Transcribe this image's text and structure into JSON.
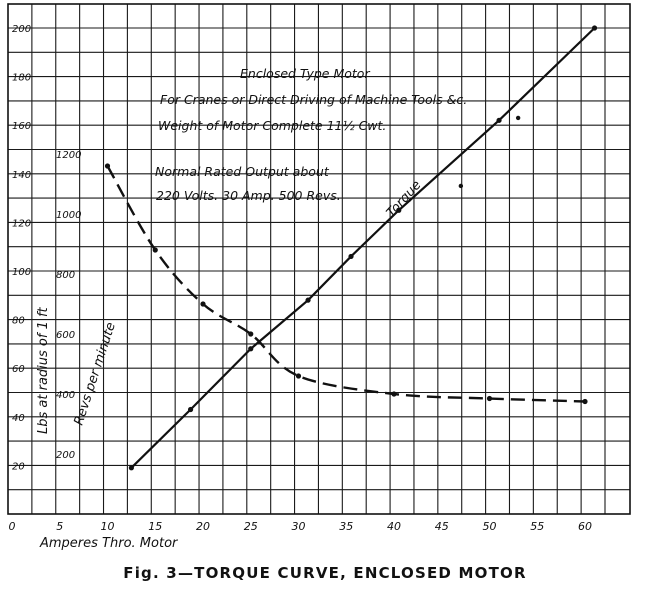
{
  "chart_data": {
    "type": "line",
    "caption": "Fig. 3—TORQUE CURVE, ENCLOSED MOTOR",
    "xlabel": "Amperes Thro. Motor",
    "ylabel_torque": "Lbs at radius of 1 ft",
    "ylabel_revs": "Revs per minute",
    "notes": [
      "Enclosed Type Motor",
      "For Cranes or Direct Driving of Machine Tools &c.",
      "Weight of Motor Complete 11½ Cwt.",
      "Normal Rated Output about",
      "220 Volts. 30 Amp. 500 Revs."
    ],
    "x_ticks": [
      "0",
      "5",
      "10",
      "15",
      "20",
      "25",
      "30",
      "35",
      "40",
      "45",
      "50",
      "55",
      "60"
    ],
    "x_tick_values": [
      0,
      5,
      10,
      15,
      20,
      25,
      30,
      35,
      40,
      45,
      50,
      55,
      60
    ],
    "torque_ticks": [
      "20",
      "40",
      "60",
      "80",
      "100",
      "120",
      "140",
      "160",
      "180",
      "200"
    ],
    "torque_tick_values": [
      20,
      40,
      60,
      80,
      100,
      120,
      140,
      160,
      180,
      200
    ],
    "revs_ticks": [
      "200",
      "400",
      "600",
      "800",
      "1000",
      "1200"
    ],
    "revs_tick_values": [
      200,
      400,
      600,
      800,
      1000,
      1200
    ],
    "xlim": [
      0,
      65
    ],
    "ylim_torque": [
      0,
      210
    ],
    "ylim_revs": [
      0,
      1300
    ],
    "grid": true,
    "series": [
      {
        "name": "Torque",
        "axis": "torque",
        "x": [
          12.5,
          18.7,
          25,
          31,
          35.5,
          40.5,
          51,
          61
        ],
        "y": [
          19,
          43,
          68,
          88,
          106,
          125,
          162,
          200
        ]
      },
      {
        "axis": "revs",
        "x": [
          10,
          15,
          20,
          25,
          30,
          40,
          50,
          60
        ],
        "y": [
          1160,
          880,
          700,
          600,
          460,
          400,
          385,
          375
        ]
      }
    ],
    "stray_points": [
      {
        "x": 47,
        "y": 135,
        "axis": "torque"
      },
      {
        "x": 53,
        "y": 163,
        "axis": "torque"
      }
    ]
  }
}
